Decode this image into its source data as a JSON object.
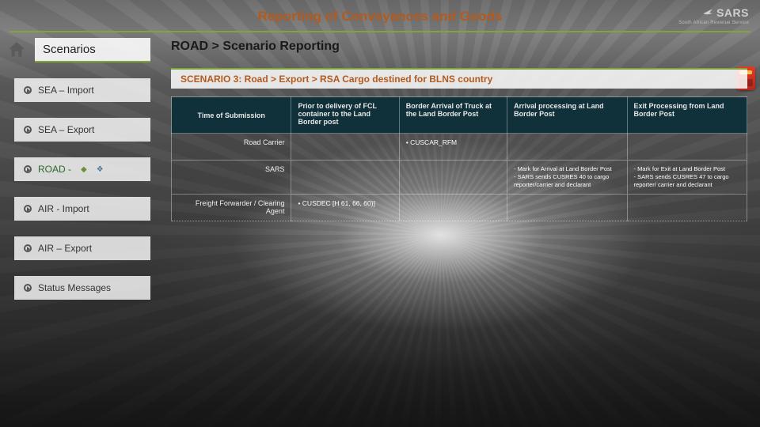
{
  "header": {
    "title": "Reporting of Conveyances and Goods",
    "logo_text": "SARS",
    "logo_sub": "South African Revenue Service"
  },
  "sidebar": {
    "title": "Scenarios",
    "items": [
      {
        "label": "SEA – Import",
        "active": false
      },
      {
        "label": "SEA – Export",
        "active": false
      },
      {
        "label": "ROAD - ",
        "active": true,
        "suffix1": "◆",
        "suffix2": "❖"
      },
      {
        "label": "AIR - Import",
        "active": false
      },
      {
        "label": "AIR – Export",
        "active": false
      },
      {
        "label": "Status Messages",
        "active": false
      }
    ]
  },
  "main": {
    "breadcrumb": "ROAD > Scenario Reporting",
    "scenario_title": "SCENARIO 3: Road > Export > RSA Cargo destined for BLNS country",
    "table": {
      "columns": [
        "Time of Submission",
        "Prior to delivery of FCL container to the Land Border post",
        "Border Arrival of Truck at the Land Border Post",
        "Arrival processing at Land Border Post",
        "Exit Processing from Land Border Post"
      ],
      "rows": [
        {
          "label": "Road Carrier",
          "cells": [
            "",
            "• CUSCAR_RFM",
            "",
            ""
          ]
        },
        {
          "label": "SARS",
          "cells": [
            "",
            "",
            [
              "Mark for Arrival at Land Border Post",
              "SARS sends CUSRES 40 to cargo reporter/carrier and declarant"
            ],
            [
              "Mark for Exit at Land Border Post",
              "SARS sends CUSRES 47 to cargo reporter/ carrier and declarant"
            ]
          ]
        },
        {
          "label": "Freight Forwarder / Clearing Agent",
          "cells": [
            "• CUSDEC [H 61, 66, 60)]",
            "",
            "",
            ""
          ]
        }
      ]
    }
  },
  "style": {
    "accent_orange": "#b35a1e",
    "accent_green": "#7da539",
    "table_head_bg": "#10303a"
  }
}
